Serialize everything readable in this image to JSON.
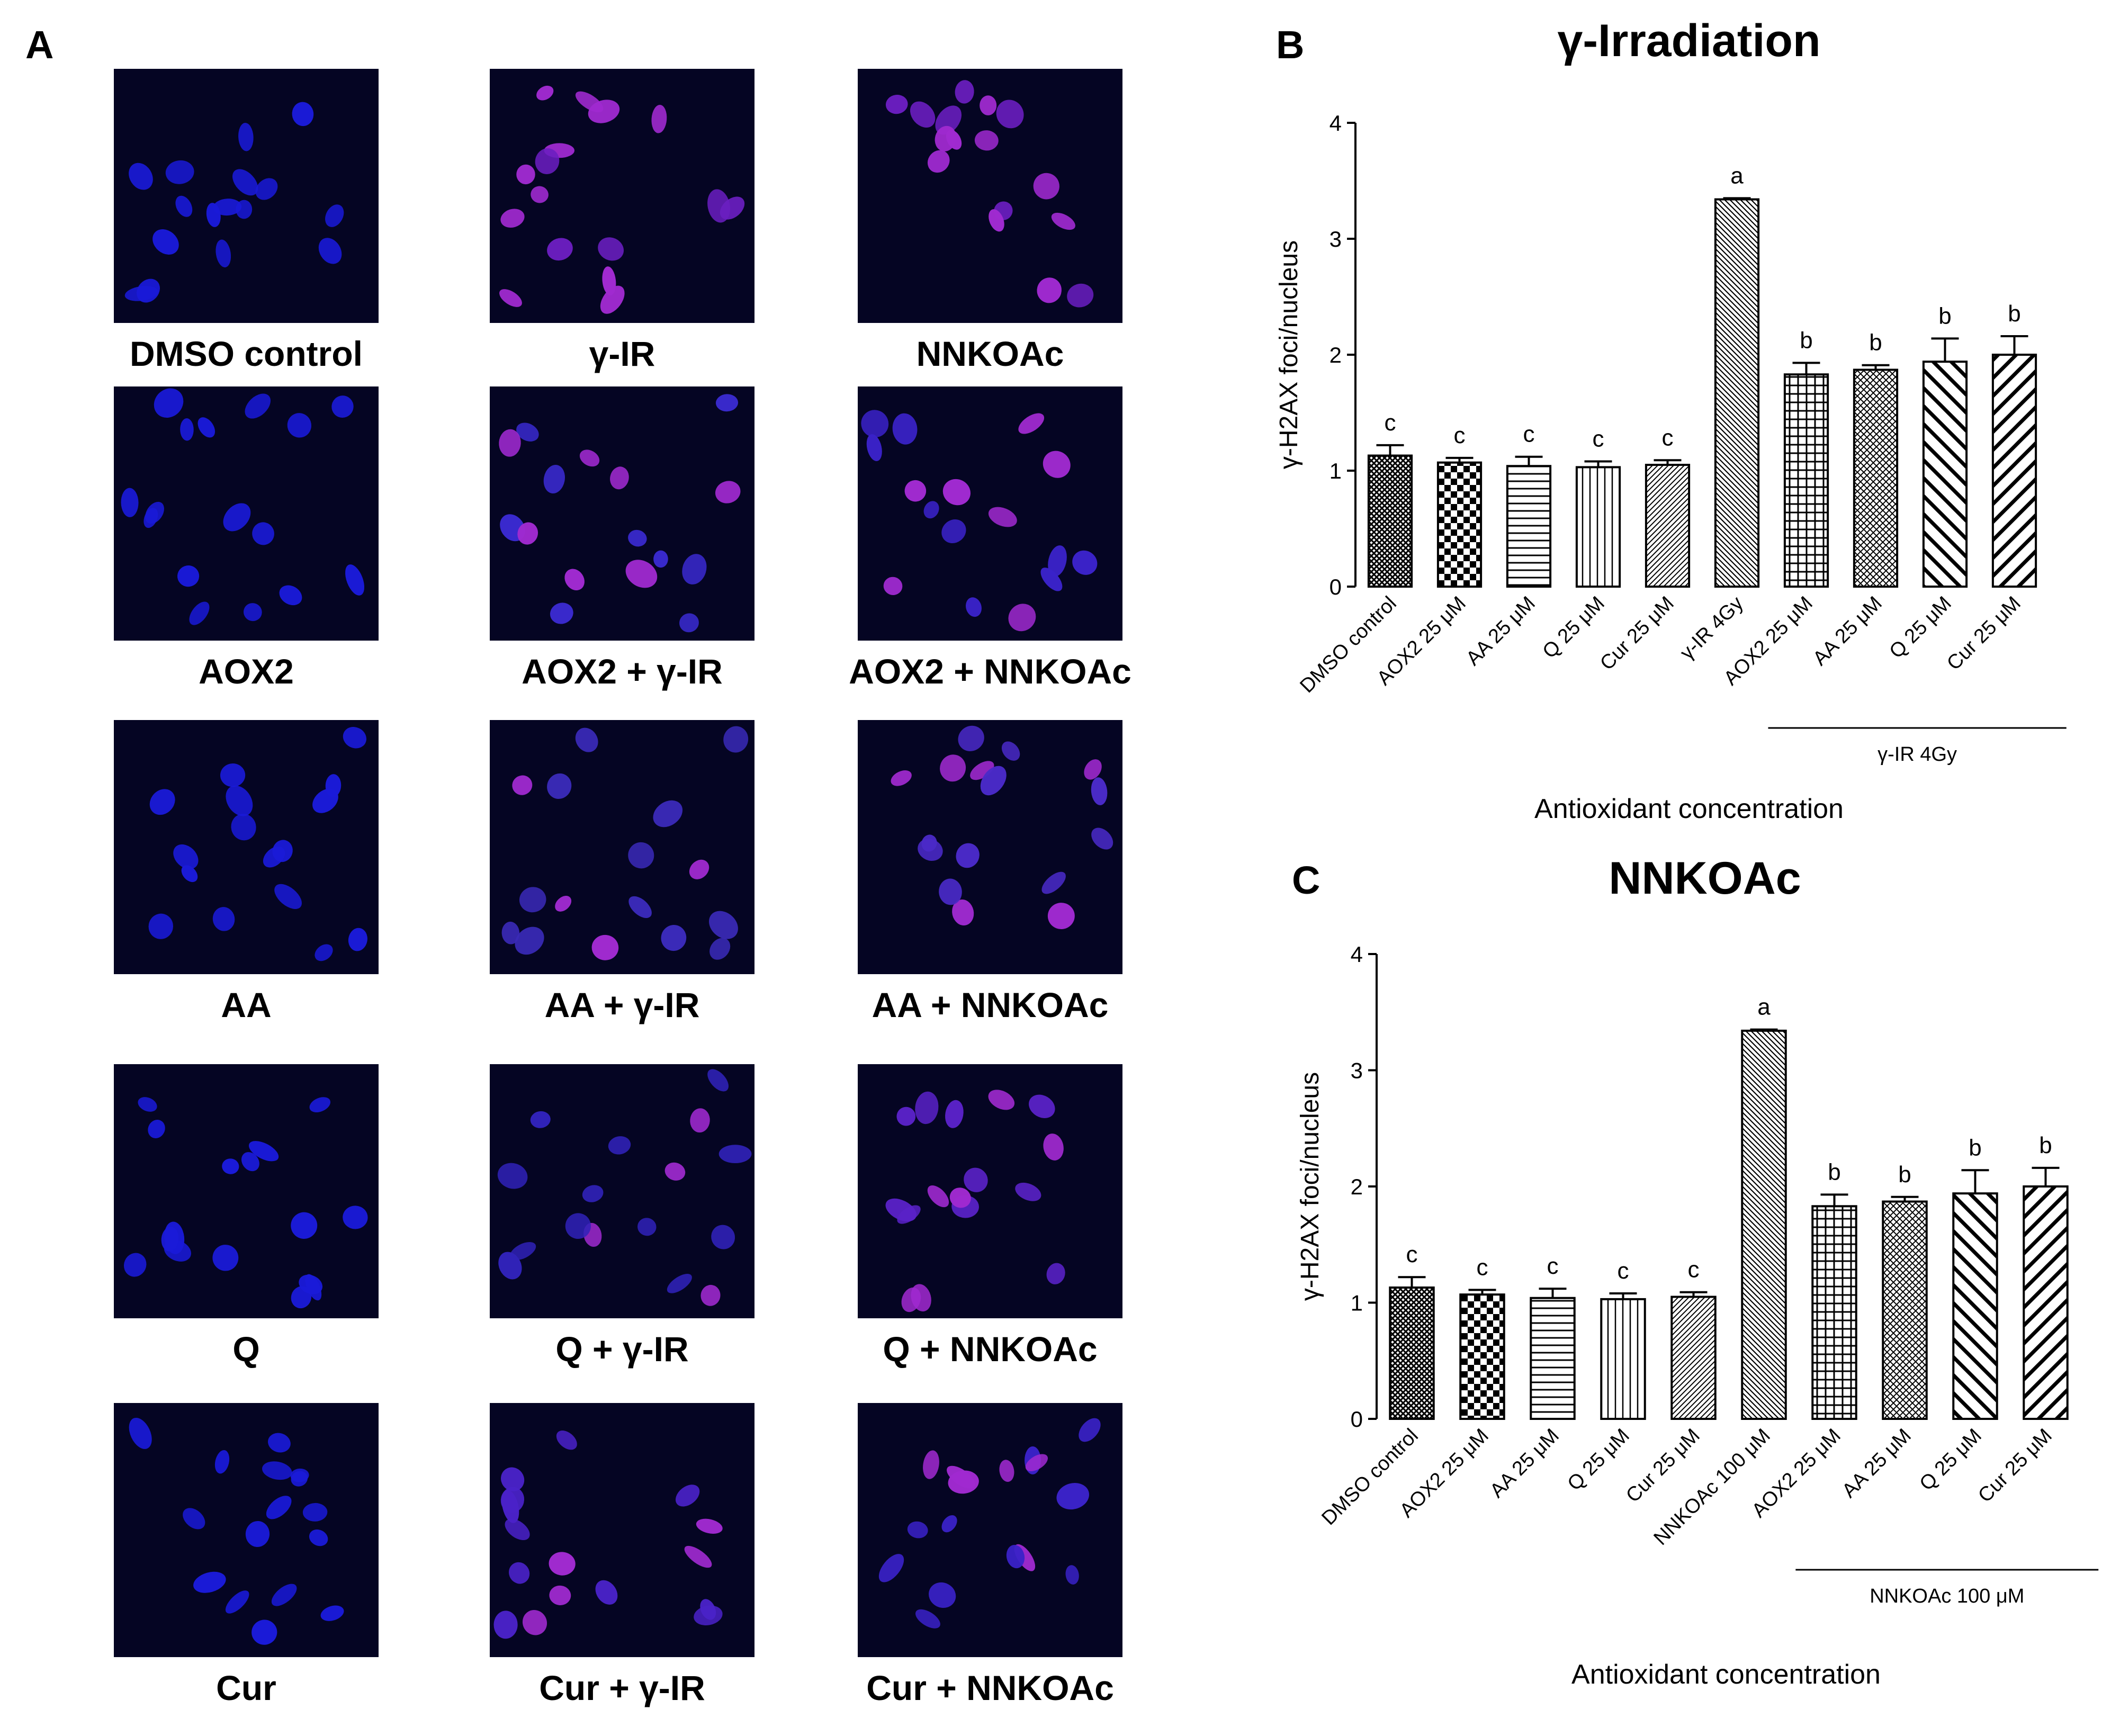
{
  "panel_a": {
    "letter": "A",
    "images": [
      {
        "label": "DMSO control",
        "tint": "#1a1ad8",
        "red": 0.0
      },
      {
        "label": "γ-IR",
        "tint": "#6a1ec0",
        "red": 0.55
      },
      {
        "label": "NNKOAc",
        "tint": "#6a1ec0",
        "red": 0.55
      },
      {
        "label": "AOX2",
        "tint": "#1a1ad8",
        "red": 0.0
      },
      {
        "label": "AOX2 + γ-IR",
        "tint": "#3a2ad0",
        "red": 0.25
      },
      {
        "label": "AOX2 + NNKOAc",
        "tint": "#3a22c8",
        "red": 0.3
      },
      {
        "label": "AA",
        "tint": "#1a1ad8",
        "red": 0.0
      },
      {
        "label": "AA + γ-IR",
        "tint": "#3a2ab8",
        "red": 0.2
      },
      {
        "label": "AA + NNKOAc",
        "tint": "#4a2ac8",
        "red": 0.3
      },
      {
        "label": "Q",
        "tint": "#1a1ad8",
        "red": 0.0
      },
      {
        "label": "Q + γ-IR",
        "tint": "#3022b8",
        "red": 0.2
      },
      {
        "label": "Q + NNKOAc",
        "tint": "#5a22c8",
        "red": 0.45
      },
      {
        "label": "Cur",
        "tint": "#1a1ad8",
        "red": 0.0
      },
      {
        "label": "Cur + γ-IR",
        "tint": "#4a22c8",
        "red": 0.35
      },
      {
        "label": "Cur + NNKOAc",
        "tint": "#3a22c8",
        "red": 0.2
      }
    ]
  },
  "chart_data": [
    {
      "panel": "B",
      "type": "bar",
      "title": "γ-Irradiation",
      "ylabel": "γ-H2AX foci/nucleus",
      "xlabel": "Antioxidant concentration",
      "ylim": [
        0,
        4
      ],
      "yticks": [
        "0",
        "1",
        "2",
        "3",
        "4"
      ],
      "categories": [
        "DMSO control",
        "AOX2 25 μM",
        "AA 25 μM",
        "Q 25 μM",
        "Cur 25 μM",
        "γ-IR 4Gy",
        "AOX2 25 μM",
        "AA 25 μM",
        "Q 25 μM",
        "Cur 25 μM"
      ],
      "values": [
        1.13,
        1.07,
        1.04,
        1.03,
        1.05,
        3.34,
        1.83,
        1.87,
        1.94,
        2.0
      ],
      "errors": [
        0.09,
        0.04,
        0.08,
        0.05,
        0.04,
        0.01,
        0.1,
        0.04,
        0.2,
        0.16
      ],
      "significance": [
        "c",
        "c",
        "c",
        "c",
        "c",
        "a",
        "b",
        "b",
        "b",
        "b"
      ],
      "patterns": [
        "crosshatch",
        "checker",
        "hlines",
        "vlines",
        "diagfine",
        "diagback",
        "grid",
        "diamond",
        "diagwide",
        "diagwide2"
      ],
      "group_label": "γ-IR 4Gy"
    },
    {
      "panel": "C",
      "type": "bar",
      "title": "NNKOAc",
      "ylabel": "γ-H2AX foci/nucleus",
      "xlabel": "Antioxidant concentration",
      "ylim": [
        0,
        4
      ],
      "yticks": [
        "0",
        "1",
        "2",
        "3",
        "4"
      ],
      "categories": [
        "DMSO control",
        "AOX2 25 μM",
        "AA 25 μM",
        "Q 25 μM",
        "Cur 25 μM",
        "NNKOAc 100 μM",
        "AOX2 25 μM",
        "AA 25 μM",
        "Q 25 μM",
        "Cur 25 μM"
      ],
      "values": [
        1.13,
        1.07,
        1.04,
        1.03,
        1.05,
        3.34,
        1.83,
        1.87,
        1.94,
        2.0
      ],
      "errors": [
        0.09,
        0.04,
        0.08,
        0.05,
        0.04,
        0.01,
        0.1,
        0.04,
        0.2,
        0.16
      ],
      "significance": [
        "c",
        "c",
        "c",
        "c",
        "c",
        "a",
        "b",
        "b",
        "b",
        "b"
      ],
      "patterns": [
        "crosshatch",
        "checker",
        "hlines",
        "vlines",
        "diagfine",
        "diagback",
        "grid",
        "diamond",
        "diagwide",
        "diagwide2"
      ],
      "group_label": "NNKOAc 100 μM"
    }
  ]
}
